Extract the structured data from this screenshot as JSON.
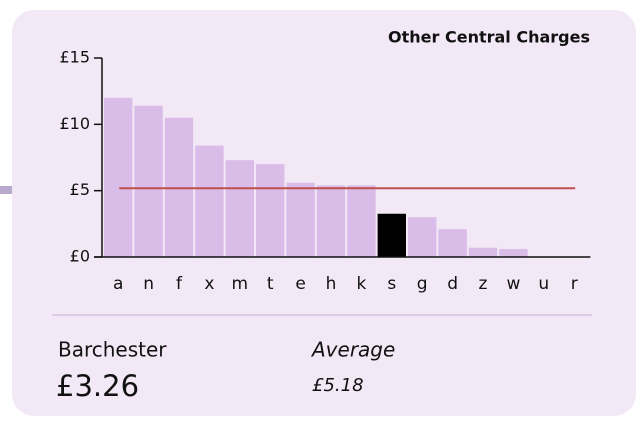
{
  "chart_data": {
    "type": "bar",
    "title": "Other Central Charges",
    "categories": [
      "a",
      "n",
      "f",
      "x",
      "m",
      "t",
      "e",
      "h",
      "k",
      "s",
      "g",
      "d",
      "z",
      "w",
      "u",
      "r"
    ],
    "values": [
      12.0,
      11.4,
      10.5,
      8.4,
      7.3,
      7.0,
      5.6,
      5.4,
      5.4,
      3.26,
      3.0,
      2.1,
      0.7,
      0.6,
      0,
      0
    ],
    "color": "#d9bde8",
    "highlight_category": "s",
    "highlight_color": "#000000",
    "ylim": [
      0,
      15
    ],
    "yticks": [
      {
        "value": 0,
        "label": "£0"
      },
      {
        "value": 5,
        "label": "£5"
      },
      {
        "value": 10,
        "label": "£10"
      },
      {
        "value": 15,
        "label": "£15"
      }
    ],
    "highlight": {
      "name": "Barchester",
      "value": 3.26,
      "value_label": "£3.26"
    },
    "average": {
      "label": "Average",
      "value": 5.18,
      "value_label": "£5.18",
      "color": "#c0504d"
    }
  }
}
